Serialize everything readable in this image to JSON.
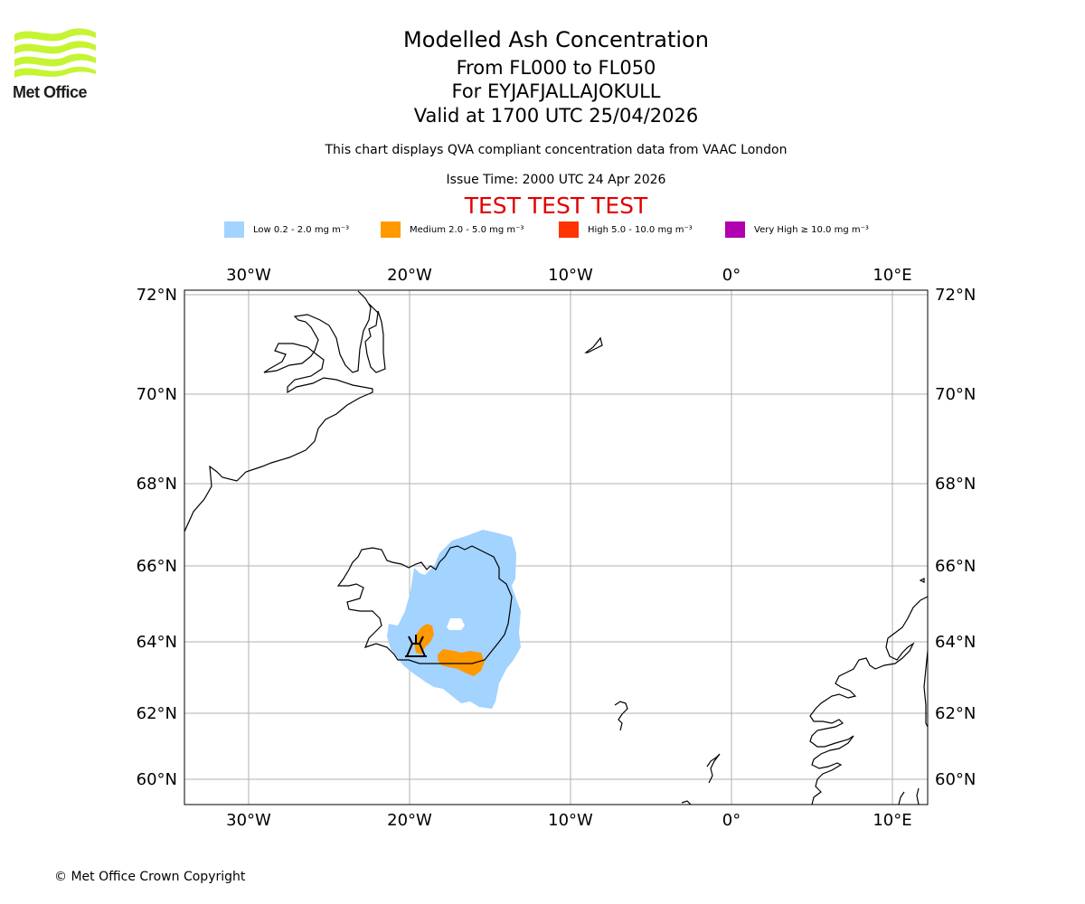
{
  "logo": {
    "name": "Met Office",
    "icon": "met-office-wave-logo-icon",
    "color": "#c6f432"
  },
  "header": {
    "title": "Modelled Ash Concentration",
    "levels": "From FL000 to FL050",
    "volcano": "For EYJAFJALLAJOKULL",
    "valid_time": "Valid at 1700 UTC 25/04/2026",
    "subtitle": "This chart displays QVA compliant concentration data from VAAC London",
    "issue_time": "Issue Time: 2000 UTC 24 Apr 2026",
    "test_banner": "TEST TEST TEST",
    "test_banner_color": "#e00000"
  },
  "legend": [
    {
      "label": "Low 0.2 - 2.0 mg m⁻³",
      "color": "#a3d3ff"
    },
    {
      "label": "Medium 2.0 - 5.0 mg m⁻³",
      "color": "#ff9900"
    },
    {
      "label": "High 5.0 - 10.0 mg m⁻³",
      "color": "#ff3300"
    },
    {
      "label": "Very High  ≥  10.0 mg m⁻³",
      "color": "#b000b0"
    }
  ],
  "map": {
    "longitude_labels": [
      "30°W",
      "20°W",
      "10°W",
      "0°",
      "10°E"
    ],
    "latitude_labels": [
      "72°N",
      "70°N",
      "68°N",
      "66°N",
      "64°N",
      "62°N",
      "60°N"
    ],
    "volcano_icon": "volcano-marker-icon",
    "grid": true
  },
  "footer": {
    "copyright": "© Met Office Crown Copyright"
  }
}
